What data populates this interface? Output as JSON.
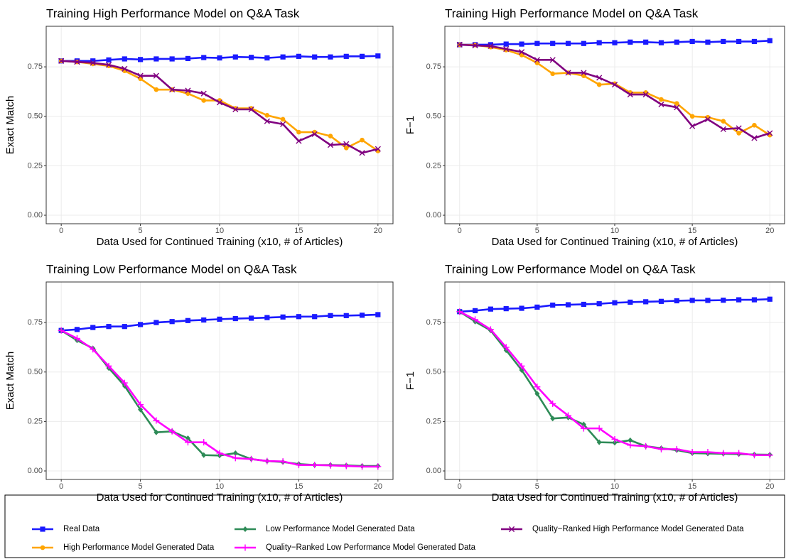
{
  "chart_data": [
    {
      "type": "line",
      "title": "Training High Performance Model on Q&A Task",
      "x_label": "Data Used for Continued Training (x10, # of Articles)",
      "y_label": "Exact Match",
      "x": [
        0,
        1,
        2,
        3,
        4,
        5,
        6,
        7,
        8,
        9,
        10,
        11,
        12,
        13,
        14,
        15,
        16,
        17,
        18,
        19,
        20
      ],
      "xlim": [
        -0.95,
        20.95
      ],
      "xticks": [
        0,
        5,
        10,
        15,
        20
      ],
      "ylim": [
        -0.043,
        0.955
      ],
      "yticks": [
        {
          "value": 0,
          "label": "0.00"
        },
        {
          "value": 0.25,
          "label": "0.25"
        },
        {
          "value": 0.5,
          "label": "0.50"
        },
        {
          "value": 0.75,
          "label": "0.75"
        }
      ],
      "grid": true,
      "series": [
        {
          "name": "Real Data",
          "color": "#1a1aff",
          "marker": "square",
          "values": [
            0.78,
            0.78,
            0.78,
            0.785,
            0.79,
            0.787,
            0.79,
            0.79,
            0.792,
            0.797,
            0.795,
            0.8,
            0.798,
            0.795,
            0.8,
            0.803,
            0.8,
            0.8,
            0.803,
            0.803,
            0.805
          ]
        },
        {
          "name": "High Performance Model Generated Data",
          "color": "#ffa500",
          "marker": "circle",
          "values": [
            0.78,
            0.775,
            0.765,
            0.755,
            0.73,
            0.69,
            0.635,
            0.635,
            0.615,
            0.58,
            0.58,
            0.54,
            0.54,
            0.505,
            0.485,
            0.42,
            0.42,
            0.4,
            0.34,
            0.38,
            0.325
          ]
        },
        {
          "name": "Quality−Ranked High Performance Model Generated Data",
          "color": "#800080",
          "marker": "x",
          "values": [
            0.78,
            0.775,
            0.77,
            0.76,
            0.74,
            0.705,
            0.705,
            0.635,
            0.63,
            0.615,
            0.57,
            0.535,
            0.535,
            0.475,
            0.46,
            0.375,
            0.41,
            0.355,
            0.36,
            0.315,
            0.335
          ]
        }
      ]
    },
    {
      "type": "line",
      "title": "Training High Performance Model on Q&A Task",
      "x_label": "Data Used for Continued Training (x10, # of Articles)",
      "y_label": "F−1",
      "x": [
        0,
        1,
        2,
        3,
        4,
        5,
        6,
        7,
        8,
        9,
        10,
        11,
        12,
        13,
        14,
        15,
        16,
        17,
        18,
        19,
        20
      ],
      "xlim": [
        -0.95,
        20.95
      ],
      "xticks": [
        0,
        5,
        10,
        15,
        20
      ],
      "ylim": [
        -0.043,
        0.955
      ],
      "yticks": [
        {
          "value": 0,
          "label": "0.00"
        },
        {
          "value": 0.25,
          "label": "0.25"
        },
        {
          "value": 0.5,
          "label": "0.50"
        },
        {
          "value": 0.75,
          "label": "0.75"
        }
      ],
      "grid": true,
      "series": [
        {
          "name": "Real Data",
          "color": "#1a1aff",
          "marker": "square",
          "values": [
            0.862,
            0.862,
            0.862,
            0.865,
            0.865,
            0.868,
            0.868,
            0.868,
            0.868,
            0.872,
            0.872,
            0.875,
            0.875,
            0.872,
            0.875,
            0.878,
            0.875,
            0.878,
            0.878,
            0.878,
            0.882
          ]
        },
        {
          "name": "High Performance Model Generated Data",
          "color": "#ffa500",
          "marker": "circle",
          "values": [
            0.862,
            0.86,
            0.85,
            0.835,
            0.81,
            0.77,
            0.715,
            0.72,
            0.705,
            0.66,
            0.665,
            0.62,
            0.62,
            0.585,
            0.565,
            0.5,
            0.495,
            0.475,
            0.415,
            0.455,
            0.405
          ]
        },
        {
          "name": "Quality−Ranked High Performance Model Generated Data",
          "color": "#800080",
          "marker": "x",
          "values": [
            0.862,
            0.858,
            0.855,
            0.84,
            0.825,
            0.785,
            0.785,
            0.72,
            0.72,
            0.695,
            0.66,
            0.61,
            0.61,
            0.56,
            0.545,
            0.45,
            0.485,
            0.435,
            0.44,
            0.39,
            0.415
          ]
        }
      ]
    },
    {
      "type": "line",
      "title": "Training Low Performance Model on Q&A Task",
      "x_label": "Data Used for Continued Training (x10, # of Articles)",
      "y_label": "Exact Match",
      "x": [
        0,
        1,
        2,
        3,
        4,
        5,
        6,
        7,
        8,
        9,
        10,
        11,
        12,
        13,
        14,
        15,
        16,
        17,
        18,
        19,
        20
      ],
      "xlim": [
        -0.95,
        20.95
      ],
      "xticks": [
        0,
        5,
        10,
        15,
        20
      ],
      "ylim": [
        -0.043,
        0.955
      ],
      "yticks": [
        {
          "value": 0,
          "label": "0.00"
        },
        {
          "value": 0.25,
          "label": "0.25"
        },
        {
          "value": 0.5,
          "label": "0.50"
        },
        {
          "value": 0.75,
          "label": "0.75"
        }
      ],
      "grid": true,
      "series": [
        {
          "name": "Real Data",
          "color": "#1a1aff",
          "marker": "square",
          "values": [
            0.71,
            0.715,
            0.725,
            0.73,
            0.73,
            0.74,
            0.75,
            0.755,
            0.76,
            0.763,
            0.767,
            0.77,
            0.772,
            0.775,
            0.778,
            0.78,
            0.78,
            0.785,
            0.785,
            0.787,
            0.79
          ]
        },
        {
          "name": "Low Performance Model Generated Data",
          "color": "#2e8b57",
          "marker": "diamond",
          "values": [
            0.71,
            0.66,
            0.62,
            0.52,
            0.43,
            0.31,
            0.195,
            0.2,
            0.165,
            0.08,
            0.078,
            0.09,
            0.06,
            0.05,
            0.045,
            0.035,
            0.03,
            0.03,
            0.028,
            0.025,
            0.025
          ]
        },
        {
          "name": "Quality−Ranked Low Performance Model Generated Data",
          "color": "#ff00ff",
          "marker": "plus",
          "values": [
            0.71,
            0.67,
            0.615,
            0.53,
            0.445,
            0.335,
            0.255,
            0.2,
            0.145,
            0.145,
            0.09,
            0.065,
            0.06,
            0.05,
            0.048,
            0.03,
            0.03,
            0.028,
            0.025,
            0.022,
            0.022
          ]
        }
      ]
    },
    {
      "type": "line",
      "title": "Training Low Performance Model on Q&A Task",
      "x_label": "Data Used for Continued Training (x10, # of Articles)",
      "y_label": "F−1",
      "x": [
        0,
        1,
        2,
        3,
        4,
        5,
        6,
        7,
        8,
        9,
        10,
        11,
        12,
        13,
        14,
        15,
        16,
        17,
        18,
        19,
        20
      ],
      "xlim": [
        -0.95,
        20.95
      ],
      "xticks": [
        0,
        5,
        10,
        15,
        20
      ],
      "ylim": [
        -0.043,
        0.955
      ],
      "yticks": [
        {
          "value": 0,
          "label": "0.00"
        },
        {
          "value": 0.25,
          "label": "0.25"
        },
        {
          "value": 0.5,
          "label": "0.50"
        },
        {
          "value": 0.75,
          "label": "0.75"
        }
      ],
      "grid": true,
      "series": [
        {
          "name": "Real Data",
          "color": "#1a1aff",
          "marker": "square",
          "values": [
            0.805,
            0.81,
            0.818,
            0.82,
            0.822,
            0.828,
            0.838,
            0.84,
            0.842,
            0.845,
            0.85,
            0.853,
            0.855,
            0.857,
            0.86,
            0.862,
            0.862,
            0.863,
            0.865,
            0.865,
            0.868
          ]
        },
        {
          "name": "Low Performance Model Generated Data",
          "color": "#2e8b57",
          "marker": "diamond",
          "values": [
            0.805,
            0.755,
            0.71,
            0.61,
            0.51,
            0.39,
            0.265,
            0.27,
            0.235,
            0.145,
            0.143,
            0.155,
            0.125,
            0.115,
            0.105,
            0.09,
            0.088,
            0.087,
            0.085,
            0.083,
            0.082
          ]
        },
        {
          "name": "Quality−Ranked Low Performance Model Generated Data",
          "color": "#ff00ff",
          "marker": "plus",
          "values": [
            0.805,
            0.765,
            0.715,
            0.625,
            0.53,
            0.425,
            0.34,
            0.28,
            0.215,
            0.215,
            0.16,
            0.13,
            0.125,
            0.11,
            0.11,
            0.095,
            0.095,
            0.09,
            0.09,
            0.08,
            0.08
          ]
        }
      ]
    }
  ]
}
